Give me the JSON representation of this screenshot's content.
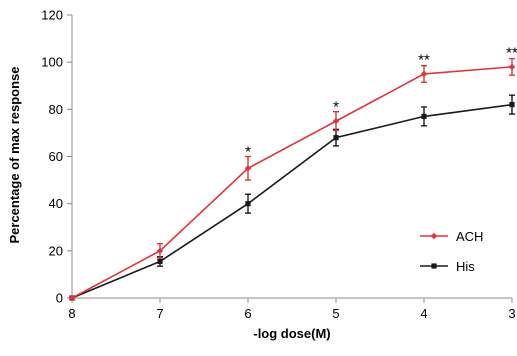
{
  "chart_data": {
    "type": "line",
    "title": "",
    "xlabel": "-log dose(M)",
    "ylabel": "Percentage of max response",
    "x": [
      8,
      7,
      6,
      5,
      4,
      3
    ],
    "x_tick_labels": [
      "8",
      "7",
      "6",
      "5",
      "4",
      "3"
    ],
    "y_ticks": [
      0,
      20,
      40,
      60,
      80,
      100,
      120
    ],
    "y_tick_labels": [
      "0",
      "20",
      "40",
      "60",
      "80",
      "100",
      "120"
    ],
    "xlim": [
      8,
      3
    ],
    "ylim": [
      0,
      120
    ],
    "grid": false,
    "legend_position": "right",
    "series": [
      {
        "name": "ACH",
        "color": "#e0343c",
        "marker": "diamond",
        "values": [
          0,
          20,
          55,
          75,
          95,
          98
        ],
        "error": [
          0,
          3,
          5,
          4,
          3.5,
          3.5
        ]
      },
      {
        "name": "His",
        "color": "#1a1a1a",
        "marker": "square",
        "values": [
          0,
          15.5,
          40,
          68,
          77,
          82
        ],
        "error": [
          0,
          2,
          4,
          3.5,
          4,
          4
        ]
      }
    ],
    "annotations": [
      {
        "x": 6,
        "y": 60,
        "text": "*"
      },
      {
        "x": 5,
        "y": 79,
        "text": "*"
      },
      {
        "x": 4,
        "y": 99,
        "text": "**"
      },
      {
        "x": 3,
        "y": 102,
        "text": "**"
      }
    ]
  }
}
